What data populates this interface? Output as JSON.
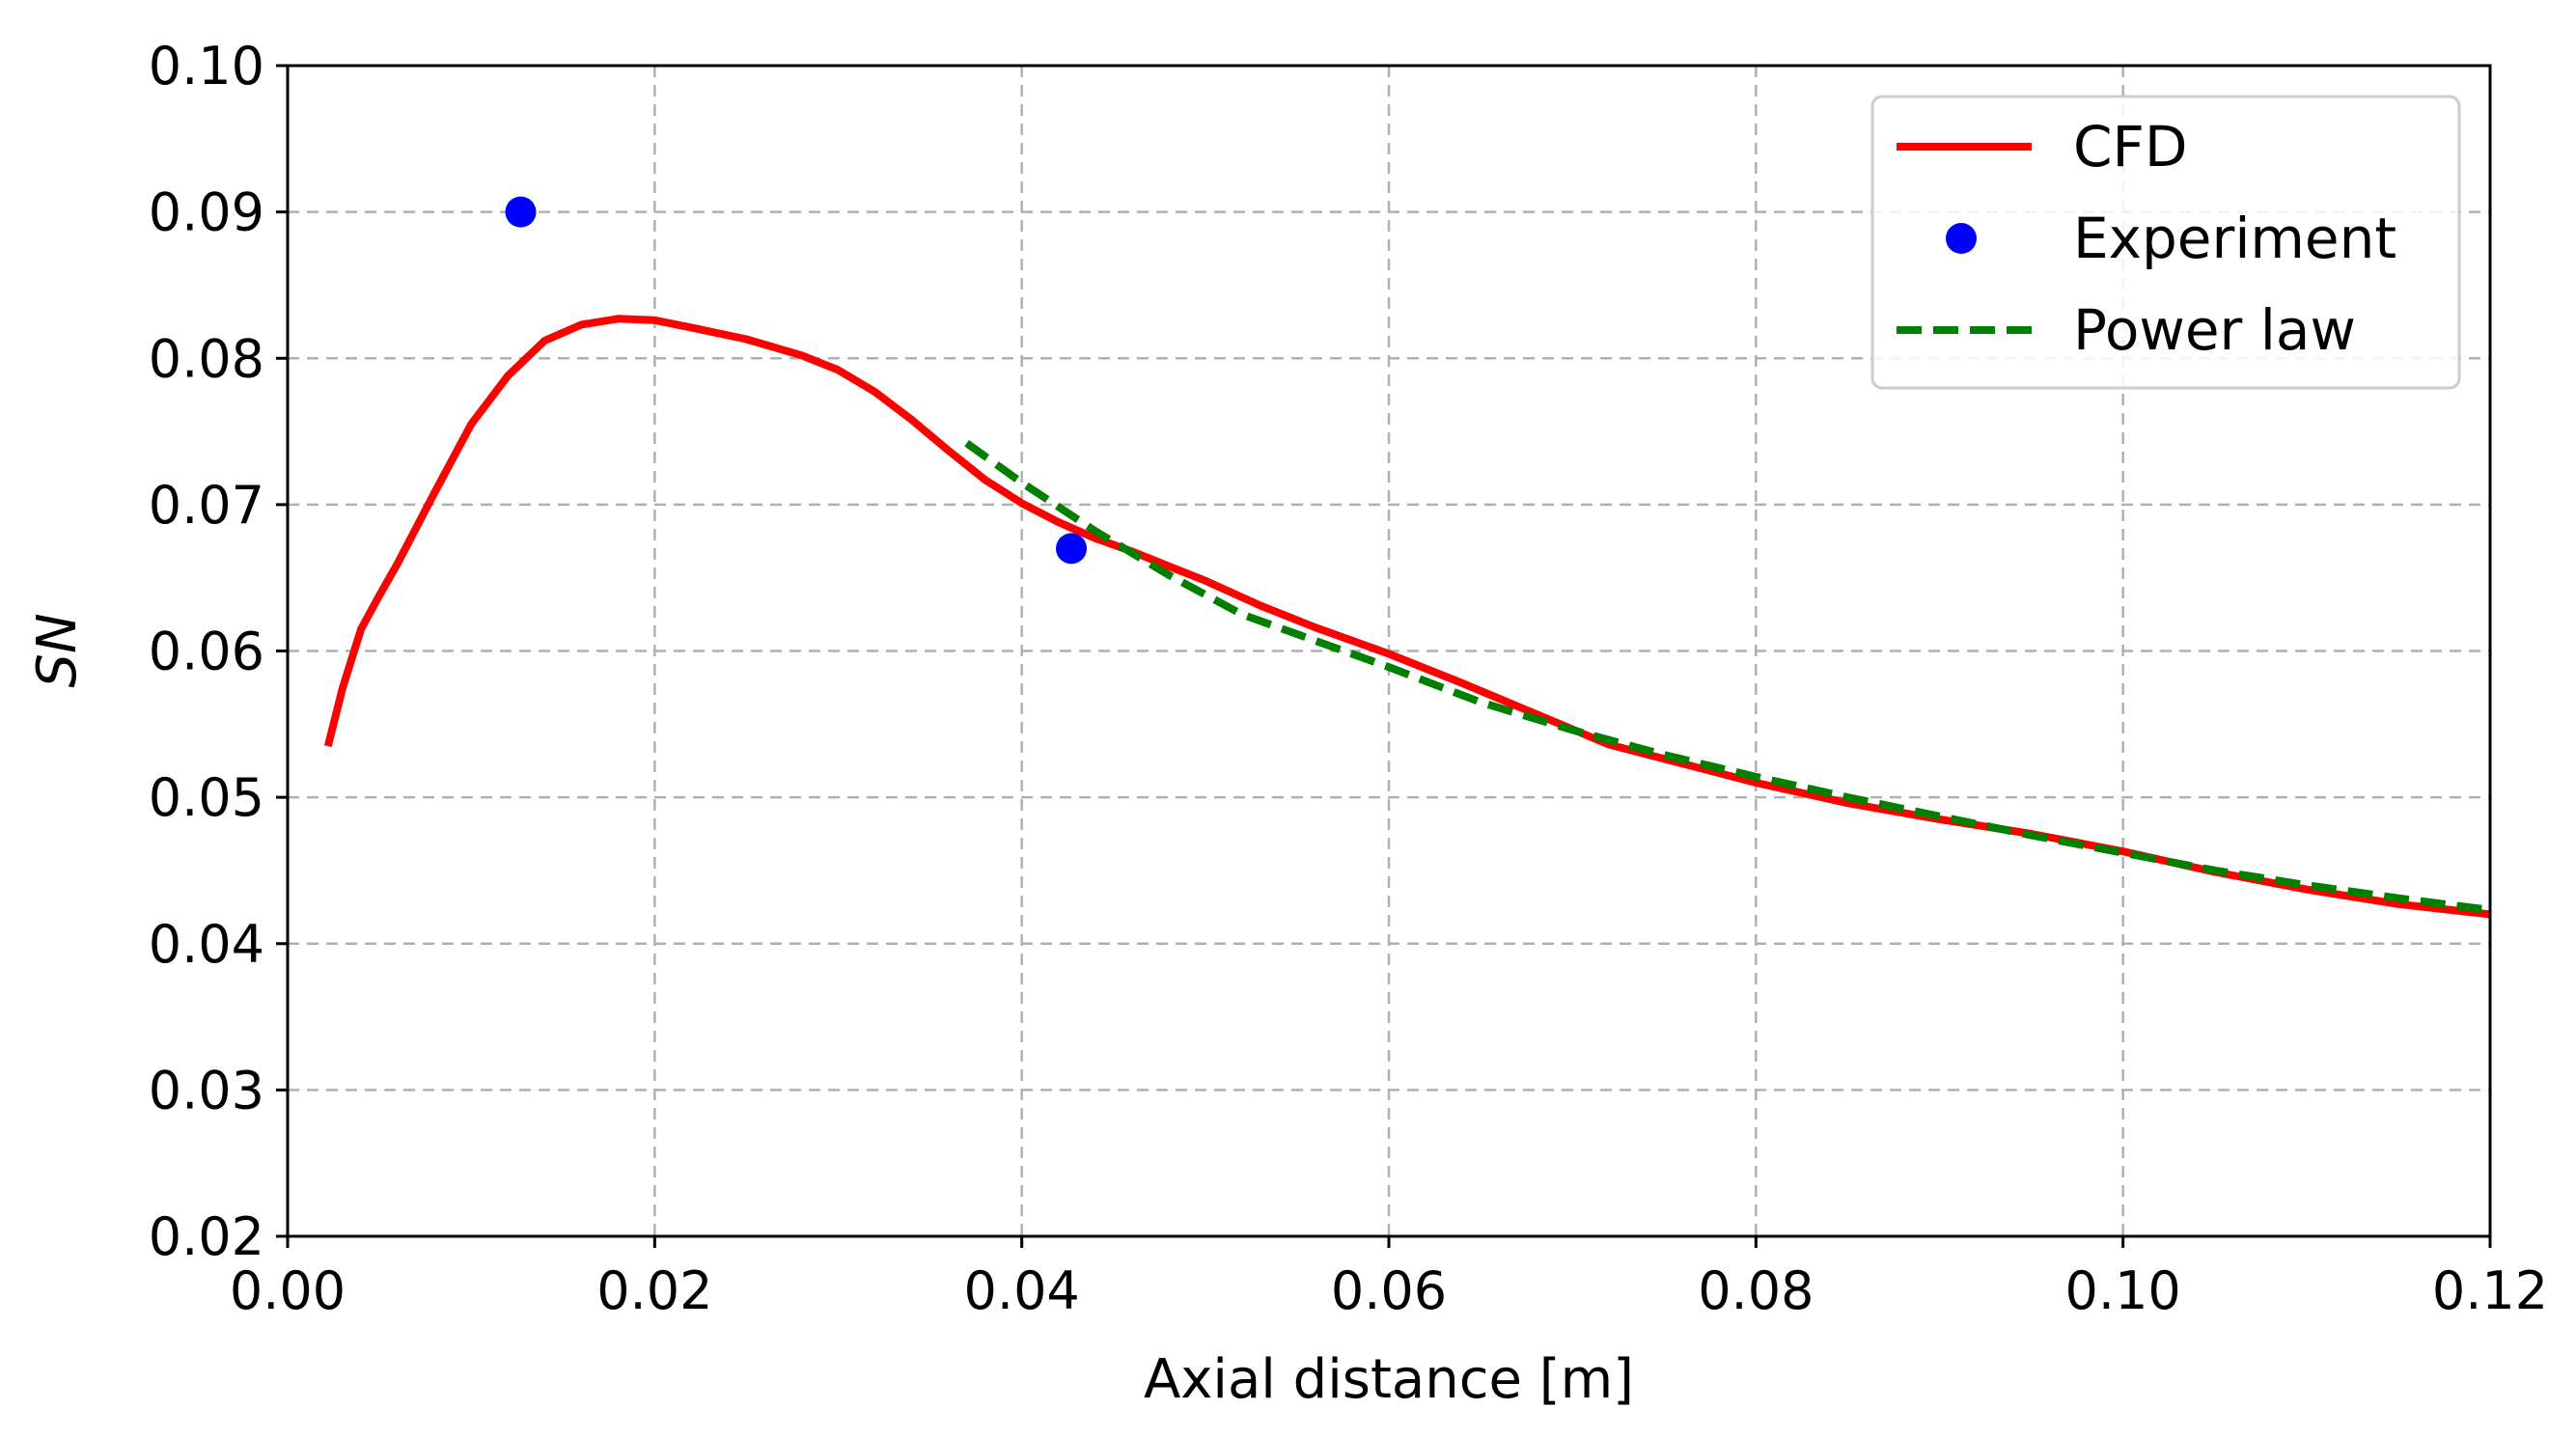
{
  "chart_data": {
    "type": "line",
    "title": "",
    "xlabel": "Axial distance [m]",
    "ylabel": "SN",
    "xlim": [
      0.0,
      0.12
    ],
    "ylim": [
      0.02,
      0.1
    ],
    "grid": true,
    "legend_position": "top-right",
    "xticks": [
      0.0,
      0.02,
      0.04,
      0.06,
      0.08,
      0.1,
      0.12
    ],
    "xtick_labels": [
      "0.00",
      "0.02",
      "0.04",
      "0.06",
      "0.08",
      "0.10",
      "0.12"
    ],
    "yticks": [
      0.02,
      0.03,
      0.04,
      0.05,
      0.06,
      0.07,
      0.08,
      0.09,
      0.1
    ],
    "ytick_labels": [
      "0.02",
      "0.03",
      "0.04",
      "0.05",
      "0.06",
      "0.07",
      "0.08",
      "0.09",
      "0.10"
    ],
    "series": [
      {
        "name": "CFD",
        "style": "solid-line",
        "color": "#ff0000",
        "x": [
          0.0022,
          0.003,
          0.004,
          0.005,
          0.006,
          0.008,
          0.01,
          0.012,
          0.014,
          0.016,
          0.018,
          0.02,
          0.022,
          0.025,
          0.028,
          0.03,
          0.032,
          0.034,
          0.036,
          0.038,
          0.04,
          0.042,
          0.044,
          0.046,
          0.048,
          0.05,
          0.053,
          0.056,
          0.06,
          0.064,
          0.068,
          0.072,
          0.076,
          0.08,
          0.085,
          0.09,
          0.095,
          0.1,
          0.105,
          0.11,
          0.115,
          0.12
        ],
        "y": [
          0.0535,
          0.0575,
          0.0615,
          0.0638,
          0.066,
          0.0708,
          0.0755,
          0.0788,
          0.0812,
          0.0823,
          0.0827,
          0.0826,
          0.0821,
          0.0813,
          0.0802,
          0.0792,
          0.0777,
          0.0758,
          0.0737,
          0.0717,
          0.0701,
          0.0688,
          0.0677,
          0.0668,
          0.0658,
          0.0648,
          0.0631,
          0.0616,
          0.0598,
          0.0578,
          0.0557,
          0.0536,
          0.0523,
          0.051,
          0.0496,
          0.0485,
          0.0475,
          0.0463,
          0.0449,
          0.0437,
          0.0427,
          0.042
        ]
      },
      {
        "name": "Experiment",
        "style": "markers",
        "color": "#0000ff",
        "x": [
          0.0127,
          0.0427
        ],
        "y": [
          0.09,
          0.067
        ]
      },
      {
        "name": "Power law",
        "style": "dashed-line",
        "color": "#007f00",
        "x": [
          0.037,
          0.04,
          0.044,
          0.048,
          0.052,
          0.056,
          0.06,
          0.065,
          0.07,
          0.075,
          0.08,
          0.085,
          0.09,
          0.095,
          0.1,
          0.105,
          0.11,
          0.115,
          0.12
        ],
        "y": [
          0.0742,
          0.0715,
          0.0682,
          0.0652,
          0.0625,
          0.0607,
          0.0589,
          0.0565,
          0.0546,
          0.0529,
          0.0514,
          0.05,
          0.0487,
          0.0474,
          0.0462,
          0.045,
          0.044,
          0.0431,
          0.0423
        ]
      }
    ]
  }
}
